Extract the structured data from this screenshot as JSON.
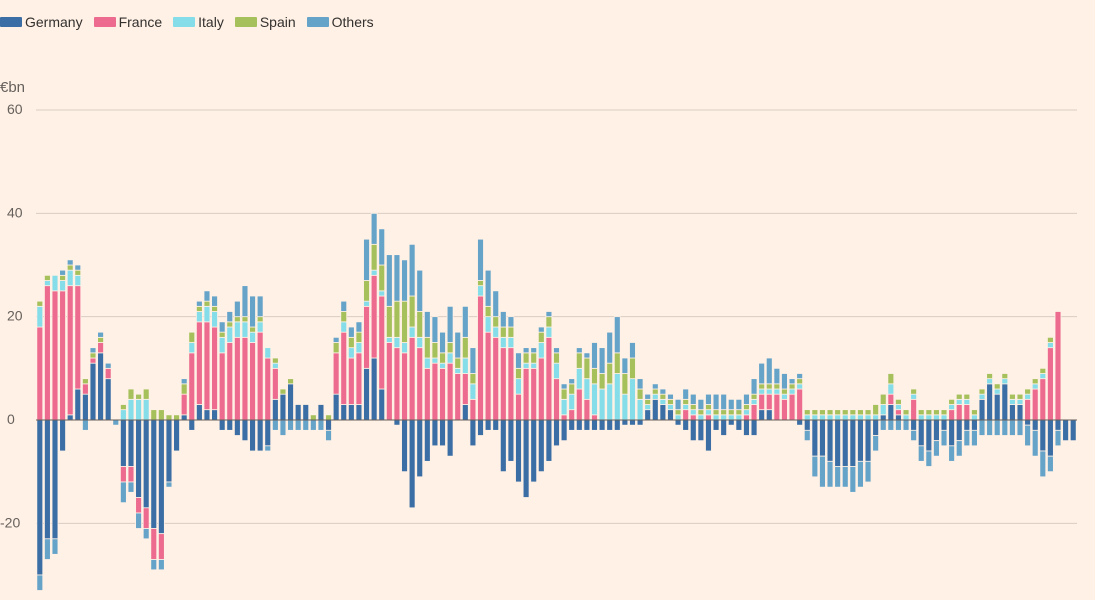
{
  "chart_data": {
    "type": "stacked-bar",
    "unit": "€bn",
    "ylim": [
      -34,
      63
    ],
    "yticks": [
      60,
      40,
      20,
      0,
      -20
    ],
    "series": [
      {
        "name": "Germany",
        "color": "#3a6ea5",
        "values": [
          -30,
          -23,
          -23,
          -6,
          1,
          6,
          5,
          11,
          13,
          8,
          0,
          -9,
          -9,
          -15,
          -17,
          -21,
          -22,
          -12,
          -6,
          1,
          -2,
          3,
          2,
          2,
          -2,
          -2,
          -3,
          -4,
          -6,
          -6,
          -5,
          4,
          5,
          7,
          3,
          3,
          0,
          3,
          -2,
          5,
          3,
          3,
          3,
          10,
          12,
          6,
          0,
          -1,
          -10,
          -17,
          -11,
          -8,
          -5,
          -5,
          -7,
          0,
          3,
          -5,
          -3,
          -2,
          -2,
          -10,
          -8,
          -12,
          -15,
          -12,
          -10,
          -8,
          -5,
          -4,
          -2,
          -2,
          -2,
          -2,
          -2,
          -2,
          -2,
          -1,
          -1,
          -1,
          2,
          4,
          3,
          2,
          -1,
          -2,
          -4,
          -4,
          -6,
          -2,
          -3,
          -1,
          -2,
          -3,
          -3,
          2,
          2,
          0,
          0,
          0,
          -1,
          -2,
          -7,
          -7,
          -8,
          -9,
          -9,
          -9,
          -8,
          -8,
          -3,
          1,
          3,
          1,
          0,
          -2,
          -5,
          -6,
          -4,
          -2,
          -5,
          -4,
          -2,
          -2,
          4,
          7,
          5,
          7,
          3,
          3,
          -1,
          -2,
          -6,
          -7,
          -2,
          -4,
          -4
        ]
      },
      {
        "name": "France",
        "color": "#ec6b8e",
        "values": [
          18,
          26,
          25,
          25,
          25,
          20,
          2,
          1,
          2,
          2,
          0,
          -3,
          -3,
          -3,
          -4,
          -6,
          -5,
          0,
          0,
          4,
          13,
          16,
          17,
          16,
          13,
          15,
          16,
          16,
          15,
          17,
          12,
          6,
          0,
          0,
          0,
          0,
          0,
          0,
          0,
          8,
          14,
          9,
          10,
          12,
          16,
          18,
          15,
          14,
          13,
          16,
          14,
          10,
          11,
          10,
          11,
          9,
          6,
          4,
          24,
          17,
          16,
          14,
          14,
          5,
          10,
          10,
          12,
          16,
          8,
          1,
          2,
          6,
          4,
          1,
          0,
          0,
          0,
          0,
          0,
          0,
          0,
          0,
          0,
          0,
          0,
          2,
          1,
          0,
          1,
          0,
          0,
          0,
          0,
          1,
          3,
          3,
          3,
          5,
          4,
          5,
          6,
          0,
          0,
          0,
          0,
          0,
          0,
          0,
          0,
          0,
          0,
          0,
          2,
          1,
          0,
          4,
          0,
          0,
          0,
          0,
          2,
          3,
          3,
          0,
          0,
          0,
          0,
          0,
          0,
          0,
          4,
          6,
          8,
          14,
          21
        ]
      },
      {
        "name": "Italy",
        "color": "#84dde8",
        "values": [
          4,
          1,
          3,
          2,
          3,
          2,
          0,
          0,
          0,
          0,
          0,
          2,
          4,
          4,
          4,
          0,
          0,
          0,
          0,
          0,
          2,
          2,
          3,
          3,
          3,
          3,
          3,
          3,
          2,
          2,
          2,
          1,
          0,
          0,
          0,
          0,
          0,
          0,
          0,
          0,
          2,
          2,
          2,
          1,
          1,
          1,
          1,
          2,
          2,
          2,
          2,
          2,
          1,
          1,
          2,
          1,
          3,
          3,
          2,
          3,
          2,
          2,
          2,
          3,
          1,
          1,
          3,
          2,
          3,
          3,
          3,
          4,
          4,
          6,
          6,
          7,
          9,
          5,
          8,
          4,
          1,
          1,
          1,
          1,
          1,
          1,
          1,
          1,
          1,
          1,
          1,
          1,
          1,
          1,
          1,
          1,
          1,
          1,
          1,
          1,
          1,
          1,
          1,
          1,
          1,
          1,
          1,
          1,
          1,
          1,
          1,
          2,
          2,
          1,
          1,
          1,
          1,
          1,
          1,
          1,
          1,
          1,
          1,
          1,
          1,
          1,
          1,
          1,
          1,
          1,
          1,
          1,
          1,
          1
        ]
      },
      {
        "name": "Spain",
        "color": "#a6c05c",
        "values": [
          1,
          1,
          0,
          1,
          1,
          1,
          1,
          1,
          1,
          0,
          0,
          1,
          2,
          1,
          2,
          2,
          2,
          1,
          1,
          2,
          2,
          1,
          1,
          1,
          1,
          1,
          1,
          1,
          1,
          1,
          0,
          1,
          1,
          1,
          0,
          0,
          1,
          0,
          1,
          2,
          2,
          2,
          2,
          4,
          5,
          5,
          6,
          7,
          8,
          6,
          5,
          4,
          3,
          2,
          2,
          2,
          4,
          2,
          1,
          2,
          2,
          2,
          2,
          2,
          2,
          2,
          2,
          2,
          2,
          2,
          2,
          3,
          4,
          3,
          3,
          4,
          4,
          4,
          4,
          2,
          1,
          1,
          1,
          1,
          1,
          1,
          1,
          1,
          1,
          1,
          1,
          1,
          1,
          1,
          1,
          1,
          1,
          1,
          1,
          1,
          1,
          1,
          1,
          1,
          1,
          1,
          1,
          1,
          1,
          1,
          2,
          2,
          2,
          1,
          1,
          1,
          1,
          1,
          1,
          1,
          1,
          1,
          1,
          1,
          1,
          1,
          1,
          1,
          1,
          1,
          1,
          1,
          1,
          1
        ]
      },
      {
        "name": "Others",
        "color": "#65a3c9",
        "values": [
          -3,
          -4,
          -3,
          1,
          1,
          1,
          -2,
          1,
          1,
          1,
          -1,
          -4,
          -2,
          -3,
          -2,
          -2,
          -2,
          -1,
          0,
          1,
          0,
          1,
          2,
          2,
          2,
          2,
          3,
          6,
          6,
          4,
          -1,
          -2,
          -3,
          -2,
          -2,
          -2,
          -2,
          -2,
          -2,
          1,
          2,
          2,
          2,
          8,
          6,
          7,
          10,
          9,
          8,
          10,
          8,
          5,
          5,
          4,
          7,
          5,
          6,
          5,
          8,
          7,
          5,
          3,
          2,
          3,
          1,
          1,
          1,
          1,
          1,
          1,
          1,
          1,
          1,
          5,
          5,
          6,
          7,
          3,
          3,
          2,
          1,
          1,
          1,
          1,
          2,
          2,
          2,
          2,
          2,
          3,
          3,
          2,
          2,
          2,
          3,
          4,
          5,
          3,
          3,
          1,
          1,
          -2,
          -4,
          -6,
          -5,
          -4,
          -4,
          -5,
          -5,
          -4,
          -3,
          -2,
          -2,
          -2,
          -2,
          -2,
          -3,
          -3,
          -3,
          -3,
          -3,
          -3,
          -3,
          -3,
          -3,
          -3,
          -3,
          -3,
          -3,
          -3,
          -4,
          -5,
          -5,
          -3,
          -3
        ]
      }
    ]
  }
}
